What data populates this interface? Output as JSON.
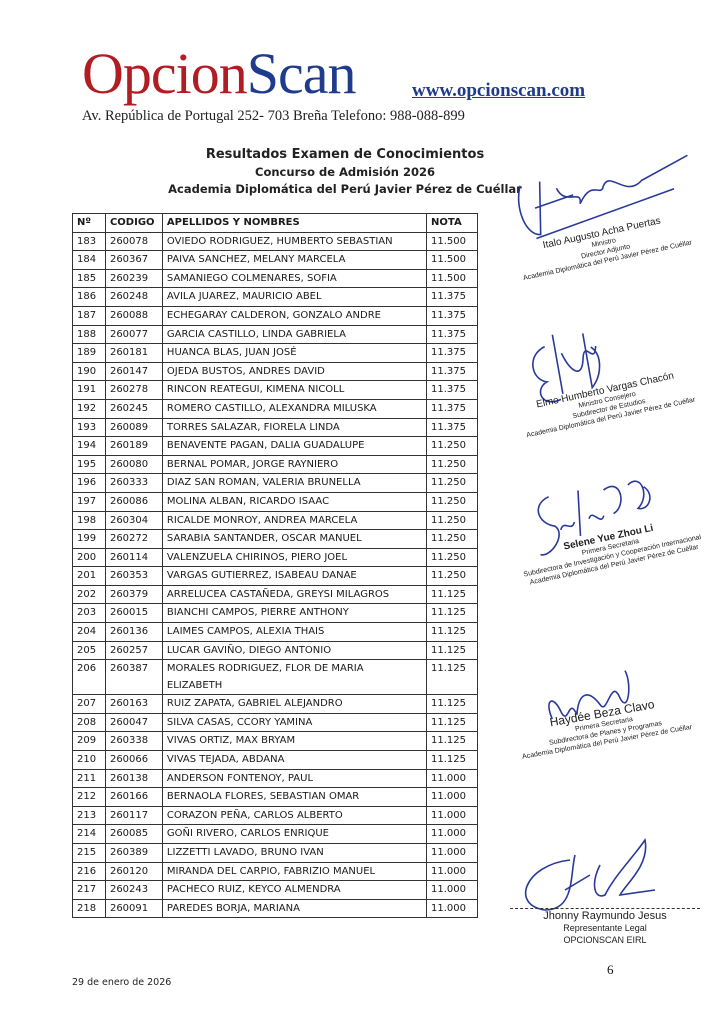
{
  "header": {
    "logo_part1": "Opcion",
    "logo_part2": "Scan",
    "website": "www.opcionscan.com",
    "address": "Av. República de Portugal 252- 703 Breña   Telefono: 988-088-899"
  },
  "titles": {
    "title": "Resultados Examen de Conocimientos",
    "subtitle": "Concurso de Admisión 2026",
    "institution": "Academia Diplomática del Perú Javier Pérez de Cuéllar"
  },
  "table": {
    "headers": [
      "Nº",
      "CODIGO",
      "APELLIDOS Y NOMBRES",
      "NOTA"
    ],
    "rows": [
      [
        "183",
        "260078",
        "OVIEDO RODRIGUEZ, HUMBERTO SEBASTIAN",
        "11.500"
      ],
      [
        "184",
        "260367",
        "PAIVA SANCHEZ, MELANY MARCELA",
        "11.500"
      ],
      [
        "185",
        "260239",
        "SAMANIEGO COLMENARES, SOFIA",
        "11.500"
      ],
      [
        "186",
        "260248",
        "AVILA JUAREZ, MAURICIO ABEL",
        "11.375"
      ],
      [
        "187",
        "260088",
        "ECHEGARAY CALDERON, GONZALO ANDRE",
        "11.375"
      ],
      [
        "188",
        "260077",
        "GARCIA CASTILLO, LINDA GABRIELA",
        "11.375"
      ],
      [
        "189",
        "260181",
        "HUANCA BLAS, JUAN JOSÉ",
        "11.375"
      ],
      [
        "190",
        "260147",
        "OJEDA BUSTOS, ANDRES DAVID",
        "11.375"
      ],
      [
        "191",
        "260278",
        "RINCON REATEGUI, KIMENA NICOLL",
        "11.375"
      ],
      [
        "192",
        "260245",
        "ROMERO CASTILLO, ALEXANDRA MILUSKA",
        "11.375"
      ],
      [
        "193",
        "260089",
        "TORRES SALAZAR, FIORELA LINDA",
        "11.375"
      ],
      [
        "194",
        "260189",
        "BENAVENTE PAGAN, DALIA GUADALUPE",
        "11.250"
      ],
      [
        "195",
        "260080",
        "BERNAL POMAR, JORGE RAYNIERO",
        "11.250"
      ],
      [
        "196",
        "260333",
        "DIAZ SAN ROMAN, VALERIA BRUNELLA",
        "11.250"
      ],
      [
        "197",
        "260086",
        "MOLINA ALBAN, RICARDO ISAAC",
        "11.250"
      ],
      [
        "198",
        "260304",
        "RICALDE MONROY, ANDREA MARCELA",
        "11.250"
      ],
      [
        "199",
        "260272",
        "SARABIA SANTANDER, OSCAR MANUEL",
        "11.250"
      ],
      [
        "200",
        "260114",
        "VALENZUELA CHIRINOS, PIERO JOEL",
        "11.250"
      ],
      [
        "201",
        "260353",
        "VARGAS GUTIERREZ, ISABEAU DANAE",
        "11.250"
      ],
      [
        "202",
        "260379",
        "ARRELUCEA CASTAÑEDA, GREYSI MILAGROS",
        "11.125"
      ],
      [
        "203",
        "260015",
        "BIANCHI CAMPOS, PIERRE ANTHONY",
        "11.125"
      ],
      [
        "204",
        "260136",
        "LAIMES CAMPOS, ALEXIA THAIS",
        "11.125"
      ],
      [
        "205",
        "260257",
        "LUCAR GAVIÑO, DIEGO ANTONIO",
        "11.125"
      ],
      [
        "206",
        "260387",
        "MORALES RODRIGUEZ, FLOR DE MARIA ELIZABETH",
        "11.125"
      ],
      [
        "207",
        "260163",
        "RUIZ ZAPATA, GABRIEL ALEJANDRO",
        "11.125"
      ],
      [
        "208",
        "260047",
        "SILVA CASAS, CCORY YAMINA",
        "11.125"
      ],
      [
        "209",
        "260338",
        "VIVAS ORTIZ, MAX BRYAM",
        "11.125"
      ],
      [
        "210",
        "260066",
        "VIVAS TEJADA, ABDANA",
        "11.125"
      ],
      [
        "211",
        "260138",
        "ANDERSON FONTENOY, PAUL",
        "11.000"
      ],
      [
        "212",
        "260166",
        "BERNAOLA FLORES, SEBASTIAN OMAR",
        "11.000"
      ],
      [
        "213",
        "260117",
        "CORAZON PEÑA, CARLOS ALBERTO",
        "11.000"
      ],
      [
        "214",
        "260085",
        "GOÑI RIVERO, CARLOS ENRIQUE",
        "11.000"
      ],
      [
        "215",
        "260389",
        "LIZZETTI LAVADO, BRUNO IVAN",
        "11.000"
      ],
      [
        "216",
        "260120",
        "MIRANDA DEL CARPIO, FABRIZIO MANUEL",
        "11.000"
      ],
      [
        "217",
        "260243",
        "PACHECO RUIZ, KEYCO ALMENDRA",
        "11.000"
      ],
      [
        "218",
        "260091",
        "PAREDES BORJA, MARIANA",
        "11.000"
      ]
    ]
  },
  "signatures": [
    {
      "name": "Italo Augusto Acha Puertas",
      "lines": [
        "Ministro",
        "Director Adjunto",
        "Academia Diplomática del Perú Javier Pérez de Cuéllar"
      ]
    },
    {
      "name": "Elmo Humberto Vargas Chacón",
      "lines": [
        "Ministro Consejero",
        "Subdirector de Estudios",
        "Academia Diplomática del Perú Javier Pérez de Cuéllar"
      ]
    },
    {
      "name": "Selene Yue Zhou Li",
      "lines": [
        "Primera Secretaria",
        "Subdirectora de Investigación y Cooperación Internacional",
        "Academia Diplomática del Perú Javier Pérez de Cuéllar"
      ]
    },
    {
      "name": "Haydée Beza Clavo",
      "lines": [
        "Primera Secretaria",
        "Subdirectora de Planes y Programas",
        "Academia Diplomática del Perú Javier Pérez de Cuéllar"
      ]
    }
  ],
  "representative": {
    "name": "Jhonny Raymundo Jesus",
    "role": "Representante Legal",
    "company": "OPCIONSCAN EIRL"
  },
  "footer": {
    "date": "29 de enero de 2026",
    "page_number": "6"
  },
  "colors": {
    "logo_red": "#b01e24",
    "logo_blue": "#1f3b8c",
    "signature_ink": "#2a3a9a"
  }
}
